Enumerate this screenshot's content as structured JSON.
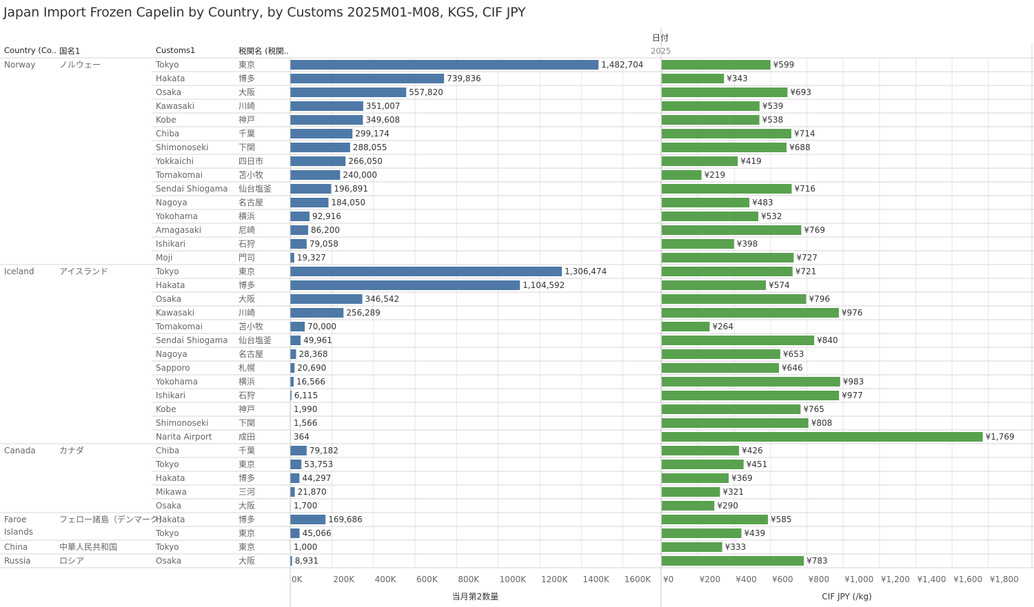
{
  "title": "Japan Import Frozen Capelin by Country, by Customs 2025M01-M08, KGS, CIF JPY",
  "header": {
    "date_label": "日付",
    "year": "2025",
    "columns": [
      "Country (Co..",
      "国名1",
      "Customs1",
      "税関名 (税関.."
    ]
  },
  "colors": {
    "quantity_bar": "#4e79a7",
    "price_bar": "#59a14f",
    "grid": "#e6e6e6",
    "row_line": "#d4d4d4"
  },
  "groups": [
    {
      "country": "Norway",
      "country_jp": "ノルウェー",
      "rows": [
        {
          "customs": "Tokyo",
          "customs_jp": "東京",
          "qty": 1482704,
          "qty_label": "1,482,704",
          "price": 599,
          "price_label": "¥599"
        },
        {
          "customs": "Hakata",
          "customs_jp": "博多",
          "qty": 739836,
          "qty_label": "739,836",
          "price": 343,
          "price_label": "¥343"
        },
        {
          "customs": "Osaka",
          "customs_jp": "大阪",
          "qty": 557820,
          "qty_label": "557,820",
          "price": 693,
          "price_label": "¥693"
        },
        {
          "customs": "Kawasaki",
          "customs_jp": "川崎",
          "qty": 351007,
          "qty_label": "351,007",
          "price": 539,
          "price_label": "¥539"
        },
        {
          "customs": "Kobe",
          "customs_jp": "神戸",
          "qty": 349608,
          "qty_label": "349,608",
          "price": 538,
          "price_label": "¥538"
        },
        {
          "customs": "Chiba",
          "customs_jp": "千葉",
          "qty": 299174,
          "qty_label": "299,174",
          "price": 714,
          "price_label": "¥714"
        },
        {
          "customs": "Shimonoseki",
          "customs_jp": "下関",
          "qty": 288055,
          "qty_label": "288,055",
          "price": 688,
          "price_label": "¥688"
        },
        {
          "customs": "Yokkaichi",
          "customs_jp": "四日市",
          "qty": 266050,
          "qty_label": "266,050",
          "price": 419,
          "price_label": "¥419"
        },
        {
          "customs": "Tomakomai",
          "customs_jp": "苫小牧",
          "qty": 240000,
          "qty_label": "240,000",
          "price": 219,
          "price_label": "¥219"
        },
        {
          "customs": "Sendai Shiogama",
          "customs_jp": "仙台塩釜",
          "qty": 196891,
          "qty_label": "196,891",
          "price": 716,
          "price_label": "¥716"
        },
        {
          "customs": "Nagoya",
          "customs_jp": "名古屋",
          "qty": 184050,
          "qty_label": "184,050",
          "price": 483,
          "price_label": "¥483"
        },
        {
          "customs": "Yokohama",
          "customs_jp": "横浜",
          "qty": 92916,
          "qty_label": "92,916",
          "price": 532,
          "price_label": "¥532"
        },
        {
          "customs": "Amagasaki",
          "customs_jp": "尼崎",
          "qty": 86200,
          "qty_label": "86,200",
          "price": 769,
          "price_label": "¥769"
        },
        {
          "customs": "Ishikari",
          "customs_jp": "石狩",
          "qty": 79058,
          "qty_label": "79,058",
          "price": 398,
          "price_label": "¥398"
        },
        {
          "customs": "Moji",
          "customs_jp": "門司",
          "qty": 19327,
          "qty_label": "19,327",
          "price": 727,
          "price_label": "¥727"
        }
      ]
    },
    {
      "country": "Iceland",
      "country_jp": "アイスランド",
      "rows": [
        {
          "customs": "Tokyo",
          "customs_jp": "東京",
          "qty": 1306474,
          "qty_label": "1,306,474",
          "price": 721,
          "price_label": "¥721"
        },
        {
          "customs": "Hakata",
          "customs_jp": "博多",
          "qty": 1104592,
          "qty_label": "1,104,592",
          "price": 574,
          "price_label": "¥574"
        },
        {
          "customs": "Osaka",
          "customs_jp": "大阪",
          "qty": 346542,
          "qty_label": "346,542",
          "price": 796,
          "price_label": "¥796"
        },
        {
          "customs": "Kawasaki",
          "customs_jp": "川崎",
          "qty": 256289,
          "qty_label": "256,289",
          "price": 976,
          "price_label": "¥976"
        },
        {
          "customs": "Tomakomai",
          "customs_jp": "苫小牧",
          "qty": 70000,
          "qty_label": "70,000",
          "price": 264,
          "price_label": "¥264"
        },
        {
          "customs": "Sendai Shiogama",
          "customs_jp": "仙台塩釜",
          "qty": 49961,
          "qty_label": "49,961",
          "price": 840,
          "price_label": "¥840"
        },
        {
          "customs": "Nagoya",
          "customs_jp": "名古屋",
          "qty": 28368,
          "qty_label": "28,368",
          "price": 653,
          "price_label": "¥653"
        },
        {
          "customs": "Sapporo",
          "customs_jp": "札幌",
          "qty": 20690,
          "qty_label": "20,690",
          "price": 646,
          "price_label": "¥646"
        },
        {
          "customs": "Yokohama",
          "customs_jp": "横浜",
          "qty": 16566,
          "qty_label": "16,566",
          "price": 983,
          "price_label": "¥983"
        },
        {
          "customs": "Ishikari",
          "customs_jp": "石狩",
          "qty": 6115,
          "qty_label": "6,115",
          "price": 977,
          "price_label": "¥977"
        },
        {
          "customs": "Kobe",
          "customs_jp": "神戸",
          "qty": 1990,
          "qty_label": "1,990",
          "price": 765,
          "price_label": "¥765"
        },
        {
          "customs": "Shimonoseki",
          "customs_jp": "下関",
          "qty": 1566,
          "qty_label": "1,566",
          "price": 808,
          "price_label": "¥808"
        },
        {
          "customs": "Narita Airport",
          "customs_jp": "成田",
          "qty": 364,
          "qty_label": "364",
          "price": 1769,
          "price_label": "¥1,769"
        }
      ]
    },
    {
      "country": "Canada",
      "country_jp": "カナダ",
      "rows": [
        {
          "customs": "Chiba",
          "customs_jp": "千葉",
          "qty": 79182,
          "qty_label": "79,182",
          "price": 426,
          "price_label": "¥426"
        },
        {
          "customs": "Tokyo",
          "customs_jp": "東京",
          "qty": 53753,
          "qty_label": "53,753",
          "price": 451,
          "price_label": "¥451"
        },
        {
          "customs": "Hakata",
          "customs_jp": "博多",
          "qty": 44297,
          "qty_label": "44,297",
          "price": 369,
          "price_label": "¥369"
        },
        {
          "customs": "Mikawa",
          "customs_jp": "三河",
          "qty": 21870,
          "qty_label": "21,870",
          "price": 321,
          "price_label": "¥321"
        },
        {
          "customs": "Osaka",
          "customs_jp": "大阪",
          "qty": 1700,
          "qty_label": "1,700",
          "price": 290,
          "price_label": "¥290"
        }
      ]
    },
    {
      "country": "Faroe Islands",
      "country_jp": "フェロー諸島（デンマーク)",
      "rows": [
        {
          "customs": "Hakata",
          "customs_jp": "博多",
          "qty": 169686,
          "qty_label": "169,686",
          "price": 585,
          "price_label": "¥585"
        },
        {
          "customs": "Tokyo",
          "customs_jp": "東京",
          "qty": 45066,
          "qty_label": "45,066",
          "price": 439,
          "price_label": "¥439"
        }
      ]
    },
    {
      "country": "China",
      "country_jp": "中華人民共和国",
      "rows": [
        {
          "customs": "Tokyo",
          "customs_jp": "東京",
          "qty": 1000,
          "qty_label": "1,000",
          "price": 333,
          "price_label": "¥333"
        }
      ]
    },
    {
      "country": "Russia",
      "country_jp": "ロシア",
      "rows": [
        {
          "customs": "Osaka",
          "customs_jp": "大阪",
          "qty": 8931,
          "qty_label": "8,931",
          "price": 783,
          "price_label": "¥783"
        }
      ]
    }
  ],
  "chart_data": [
    {
      "type": "bar",
      "orientation": "horizontal",
      "xlabel": "当月第2数量",
      "xlim": [
        0,
        1780000
      ],
      "ticks": [
        0,
        200000,
        400000,
        600000,
        800000,
        1000000,
        1200000,
        1400000,
        1600000
      ],
      "tick_labels": [
        "0K",
        "200K",
        "400K",
        "600K",
        "800K",
        "1000K",
        "1200K",
        "1400K",
        "1600K"
      ],
      "grid": true
    },
    {
      "type": "bar",
      "orientation": "horizontal",
      "xlabel": "CIF JPY (/kg)",
      "xlim": [
        0,
        2040
      ],
      "ticks": [
        0,
        200,
        400,
        600,
        800,
        1000,
        1200,
        1400,
        1600,
        1800
      ],
      "tick_labels": [
        "¥0",
        "¥200",
        "¥400",
        "¥600",
        "¥800",
        "¥1,000",
        "¥1,200",
        "¥1,400",
        "¥1,600",
        "¥1,800"
      ],
      "grid": true
    }
  ]
}
